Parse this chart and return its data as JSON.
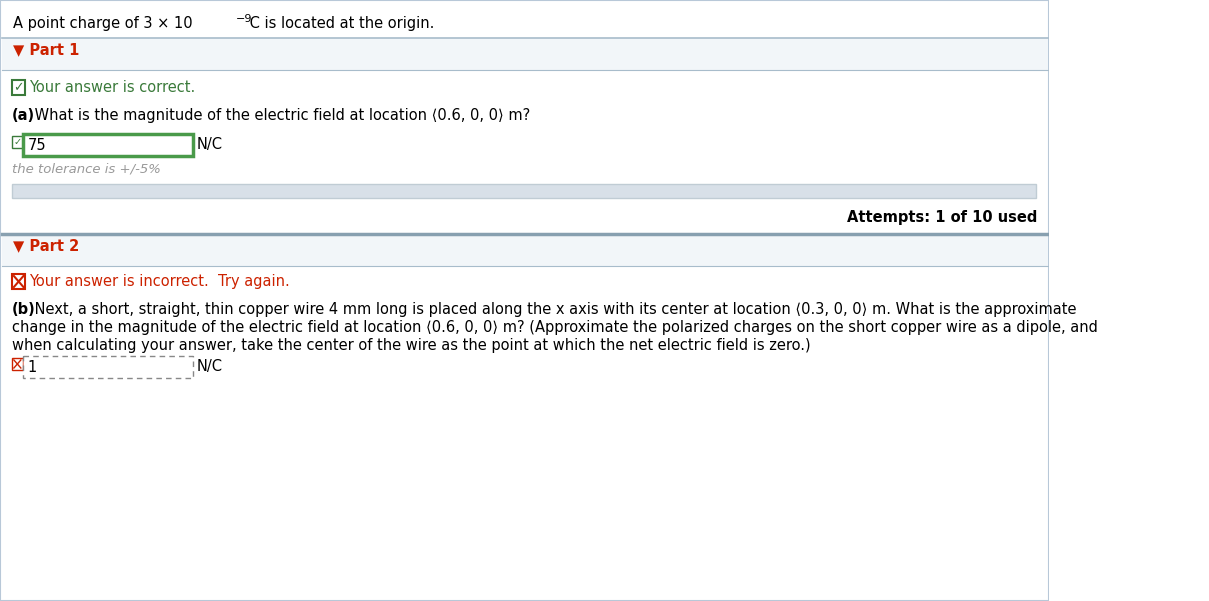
{
  "bg_color": "#ffffff",
  "outer_border_color": "#b8c8d8",
  "header_text": "A point charge of 3 × 10",
  "header_superscript": "−9",
  "header_text2": " C is located at the origin.",
  "part1_label": "▼ Part 1",
  "part1_label_color": "#cc2200",
  "part1_correct_text": "Your answer is correct.",
  "part1_correct_color": "#3a7a3a",
  "part1_check_color": "#3a7a3a",
  "part1_question_a": "(a)",
  "part1_question_b": " What is the magnitude of the electric field at location ⟨0.6, 0, 0⟩ m?",
  "part1_question_color": "#000000",
  "part1_answer": "75",
  "part1_unit": "N/C",
  "part1_tolerance": "the tolerance is +/-5%",
  "part1_tolerance_color": "#999999",
  "part1_box_border_color": "#4a9a4a",
  "attempts_text": "Attempts: 1 of 10 used",
  "part2_label": "▼ Part 2",
  "part2_label_color": "#cc2200",
  "part2_incorrect_text": "Your answer is incorrect.  Try again.",
  "part2_incorrect_color": "#cc2200",
  "part2_x_color": "#cc2200",
  "part2_question_line1": " Next, a short, straight, thin copper wire 4 mm long is placed along the x axis with its center at location ⟨0.3, 0, 0⟩ m. What is the approximate",
  "part2_question_line2": "change in the magnitude of the electric field at location ⟨0.6, 0, 0⟩ m? (Approximate the polarized charges on the short copper wire as a dipole, and",
  "part2_question_line3": "when calculating your answer, take the center of the wire as the point at which the net electric field is zero.)",
  "part2_answer": "1",
  "part2_unit": "N/C",
  "divider_color": "#a8bccb",
  "progress_bar_color": "#d8e0e8",
  "section_divider_color": "#88a0b0"
}
